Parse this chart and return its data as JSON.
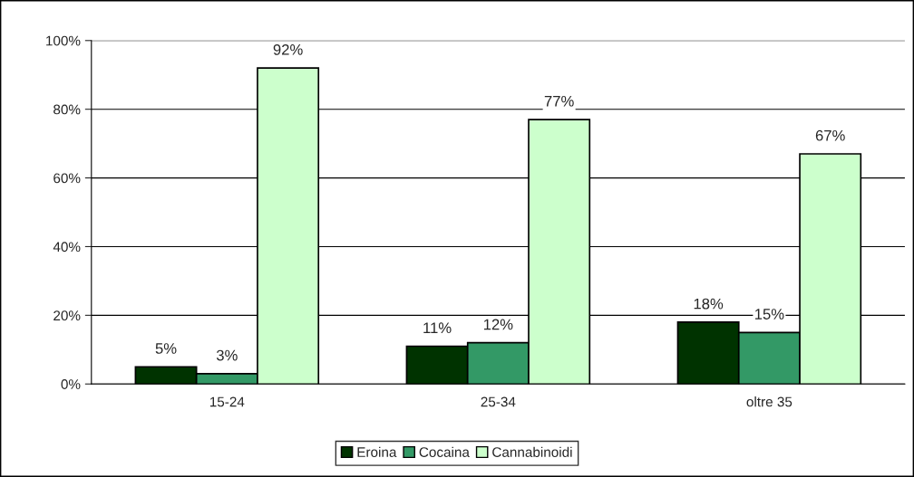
{
  "chart_data": {
    "type": "bar",
    "categories": [
      "15-24",
      "25-34",
      "oltre 35"
    ],
    "series": [
      {
        "name": "Eroina",
        "color": "#003300",
        "values": [
          5,
          11,
          18
        ],
        "value_labels": [
          "5%",
          "11%",
          "18%"
        ]
      },
      {
        "name": "Cocaina",
        "color": "#339966",
        "values": [
          3,
          12,
          15
        ],
        "value_labels": [
          "3%",
          "12%",
          "15%"
        ]
      },
      {
        "name": "Cannabinoidi",
        "color": "#ccffcc",
        "values": [
          92,
          77,
          67
        ],
        "value_labels": [
          "92%",
          "77%",
          "67%"
        ]
      }
    ],
    "ylim": [
      0,
      100
    ],
    "yticks": [
      {
        "value": 0,
        "label": "0%"
      },
      {
        "value": 20,
        "label": "20%"
      },
      {
        "value": 40,
        "label": "40%"
      },
      {
        "value": 60,
        "label": "60%"
      },
      {
        "value": 80,
        "label": "80%"
      },
      {
        "value": 100,
        "label": "100%"
      }
    ],
    "grid": "y",
    "legend": "bottom"
  }
}
